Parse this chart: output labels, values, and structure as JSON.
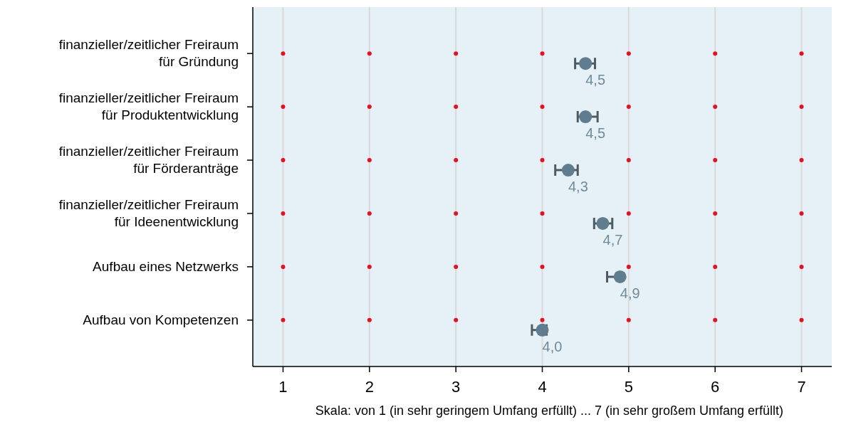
{
  "chart_data": {
    "type": "scatter",
    "orientation": "horizontal",
    "xlabel": "Skala: von 1 (in sehr geringem Umfang erfüllt) ... 7 (in sehr großem Umfang erfüllt)",
    "xlim": [
      0.65,
      7.35
    ],
    "xticks": [
      1,
      2,
      3,
      4,
      5,
      6,
      7
    ],
    "categories": [
      "finanzieller/zeitlicher Freiraum\nfür Gründung",
      "finanzieller/zeitlicher Freiraum\nfür Produktentwicklung",
      "finanzieller/zeitlicher Freiraum\nfür Förderanträge",
      "finanzieller/zeitlicher Freiraum\nfür Ideenentwicklung",
      "Aufbau eines Netzwerks",
      "Aufbau von Kompetenzen"
    ],
    "grid": "x",
    "marker": "circle",
    "series": [
      {
        "color": "#e8101c",
        "values": [
          1,
          1,
          1,
          1,
          1,
          1
        ]
      },
      {
        "color": "#e8101c",
        "values": [
          2,
          2,
          2,
          2,
          2,
          2
        ]
      },
      {
        "color": "#e8101c",
        "values": [
          3,
          3,
          3,
          3,
          3,
          3
        ]
      },
      {
        "color": "#e8101c",
        "values": [
          4,
          4,
          4,
          4,
          4,
          4
        ]
      },
      {
        "color": "#e8101c",
        "values": [
          5,
          5,
          5,
          5,
          5,
          5
        ]
      },
      {
        "color": "#e8101c",
        "values": [
          6,
          6,
          6,
          6,
          6,
          6
        ]
      },
      {
        "color": "#e8101c",
        "values": [
          7,
          7,
          7,
          7,
          7,
          7
        ]
      },
      {
        "color": "#5f7d8e",
        "values": [
          4.5,
          4.5,
          4.3,
          4.7,
          4.9,
          4.0
        ],
        "errors": [
          [
            4.38,
            4.61
          ],
          [
            4.41,
            4.64
          ],
          [
            4.15,
            4.41
          ],
          [
            4.6,
            4.81
          ],
          [
            4.75,
            4.91
          ],
          [
            3.88,
            4.05
          ]
        ],
        "value_labels": [
          "4,5",
          "4,5",
          "4,3",
          "4,7",
          "4,9",
          "4,0"
        ]
      }
    ]
  }
}
